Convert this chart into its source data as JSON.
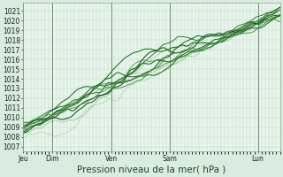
{
  "title": "",
  "xlabel": "Pression niveau de la mer( hPa )",
  "bg_color": "#d8ece0",
  "plot_bg_color": "#e8f5ec",
  "grid_color": "#b8d8bc",
  "line_color_dark": "#005500",
  "line_color_light": "#448844",
  "ylim": [
    1006.5,
    1021.8
  ],
  "yticks": [
    1007,
    1008,
    1009,
    1010,
    1011,
    1012,
    1013,
    1014,
    1015,
    1016,
    1017,
    1018,
    1019,
    1020,
    1021
  ],
  "day_labels": [
    "Jeu",
    "Dim",
    "Ven",
    "Sam",
    "Lun"
  ],
  "day_positions": [
    0,
    24,
    72,
    120,
    192
  ],
  "total_hours": 210,
  "xlabel_fontsize": 7.5,
  "tick_fontsize": 5.5
}
